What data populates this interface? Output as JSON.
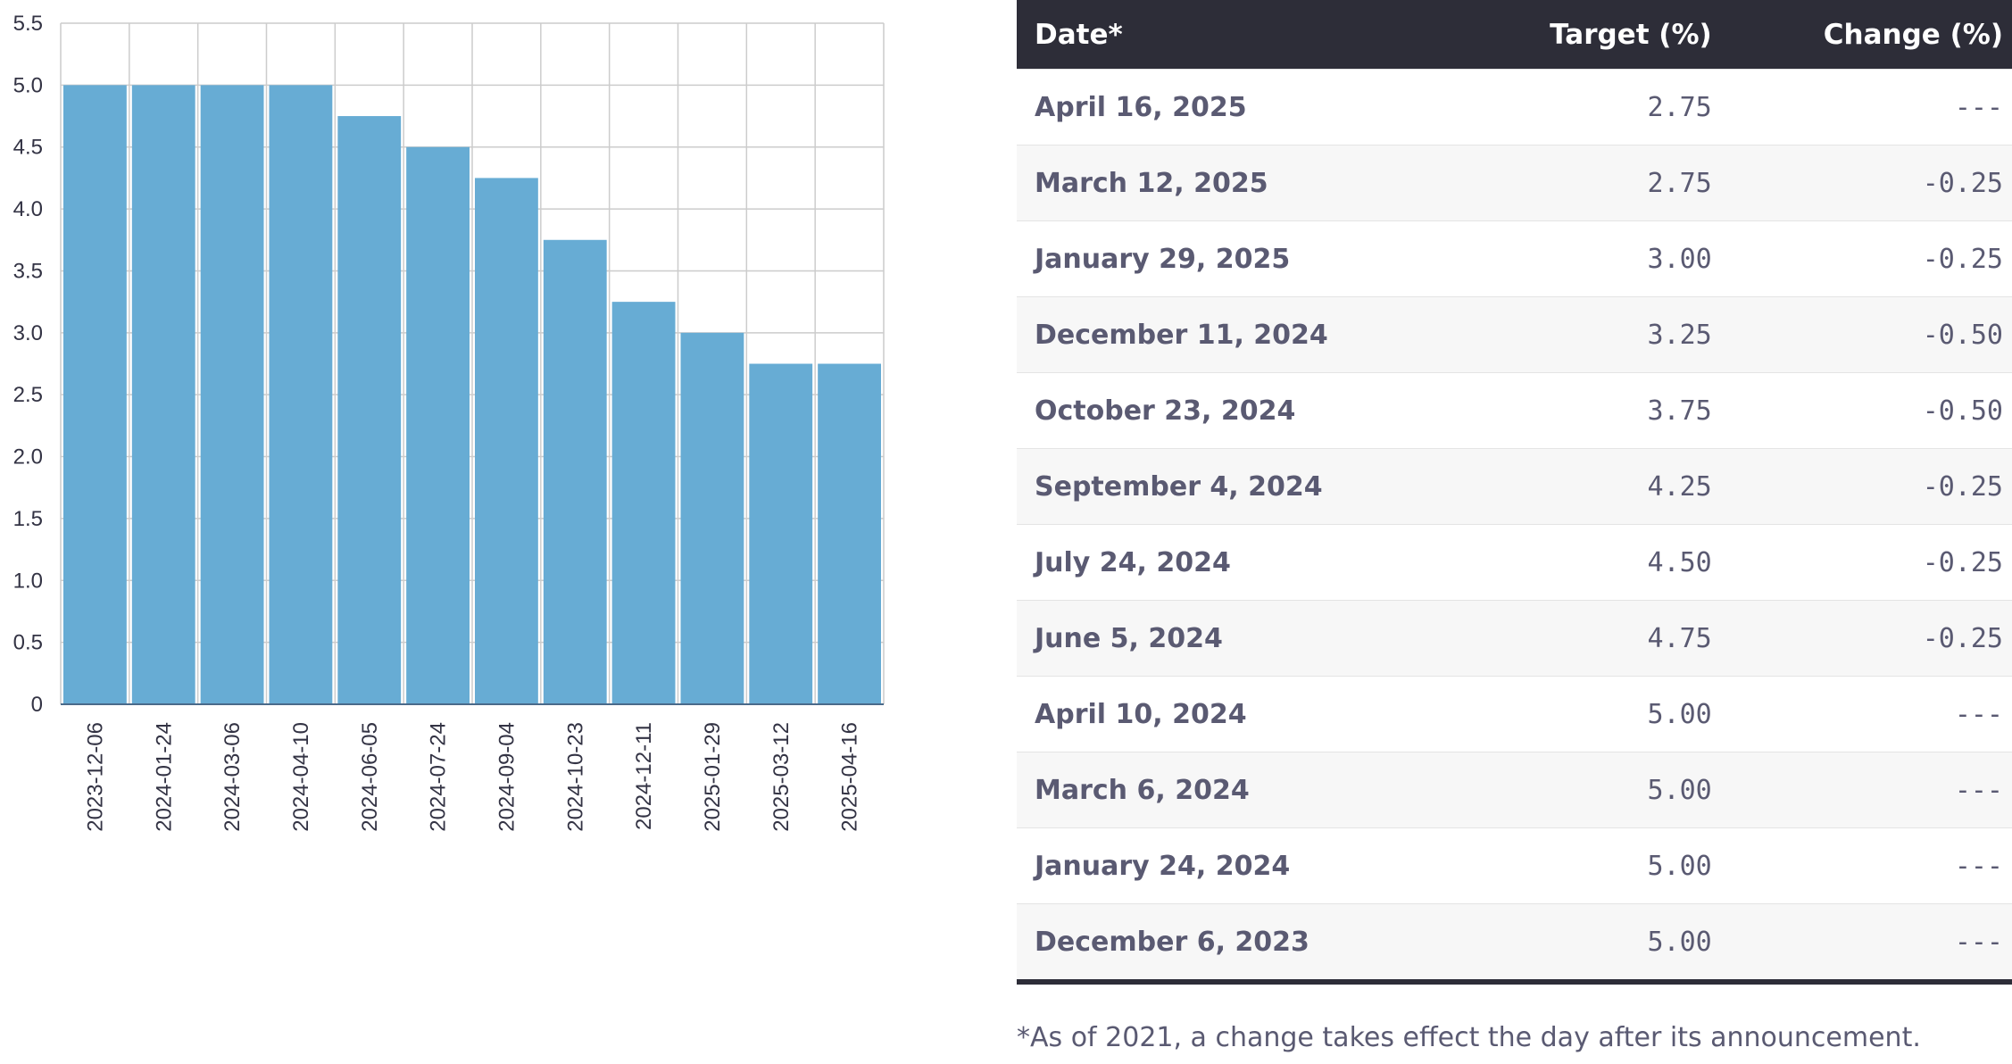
{
  "chart_data": {
    "type": "bar",
    "title": "",
    "xlabel": "",
    "ylabel": "",
    "ylim": [
      0,
      5.5
    ],
    "yticks": [
      "0",
      "0.5",
      "1.0",
      "1.5",
      "2.0",
      "2.5",
      "3.0",
      "3.5",
      "4.0",
      "4.5",
      "5.0",
      "5.5"
    ],
    "grid": true,
    "categories": [
      "2023-12-06",
      "2024-01-24",
      "2024-03-06",
      "2024-04-10",
      "2024-06-05",
      "2024-07-24",
      "2024-09-04",
      "2024-10-23",
      "2024-12-11",
      "2025-01-29",
      "2025-03-12",
      "2025-04-16"
    ],
    "values": [
      5.0,
      5.0,
      5.0,
      5.0,
      4.75,
      4.5,
      4.25,
      3.75,
      3.25,
      3.0,
      2.75,
      2.75
    ],
    "bar_color": "#67acd4"
  },
  "table": {
    "headers": {
      "date": "Date*",
      "target": "Target (%)",
      "change": "Change (%)"
    },
    "rows": [
      {
        "date": "April 16, 2025",
        "target": "2.75",
        "change": "---"
      },
      {
        "date": "March 12, 2025",
        "target": "2.75",
        "change": "-0.25"
      },
      {
        "date": "January 29, 2025",
        "target": "3.00",
        "change": "-0.25"
      },
      {
        "date": "December 11, 2024",
        "target": "3.25",
        "change": "-0.50"
      },
      {
        "date": "October 23, 2024",
        "target": "3.75",
        "change": "-0.50"
      },
      {
        "date": "September 4, 2024",
        "target": "4.25",
        "change": "-0.25"
      },
      {
        "date": "July 24, 2024",
        "target": "4.50",
        "change": "-0.25"
      },
      {
        "date": "June 5, 2024",
        "target": "4.75",
        "change": "-0.25"
      },
      {
        "date": "April 10, 2024",
        "target": "5.00",
        "change": "---"
      },
      {
        "date": "March 6, 2024",
        "target": "5.00",
        "change": "---"
      },
      {
        "date": "January 24, 2024",
        "target": "5.00",
        "change": "---"
      },
      {
        "date": "December 6, 2023",
        "target": "5.00",
        "change": "---"
      }
    ],
    "footnote": "*As of 2021, a change takes effect the day after its announcement."
  }
}
